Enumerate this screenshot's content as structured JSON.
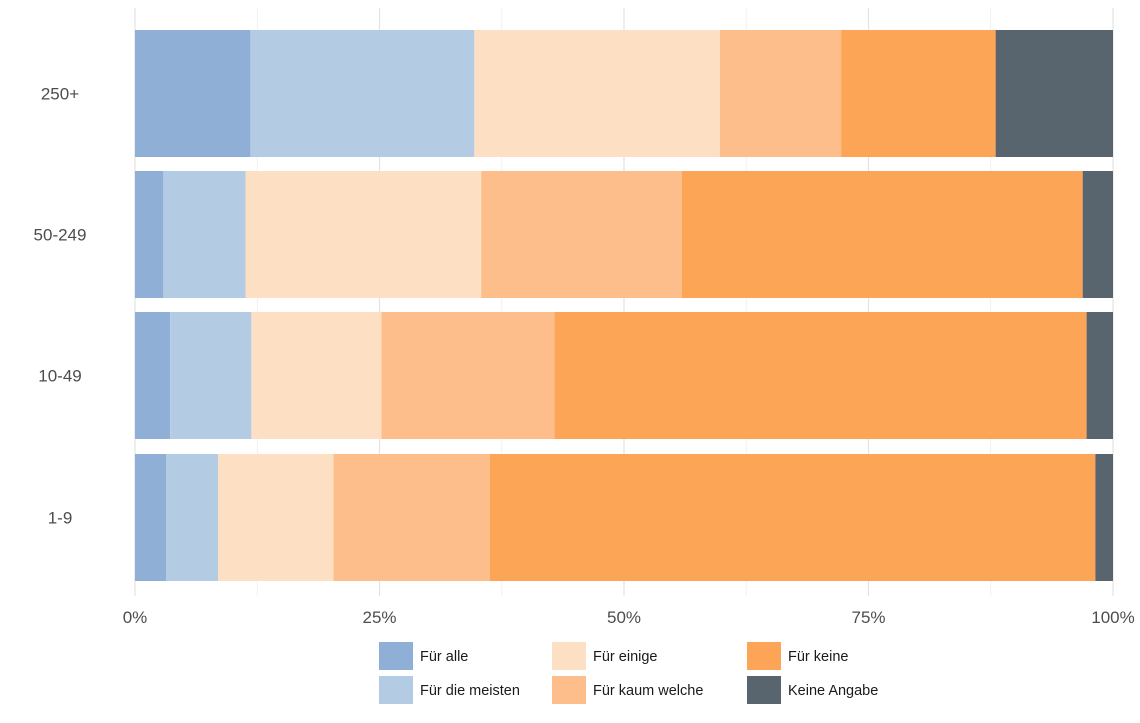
{
  "chart_data": {
    "type": "bar",
    "orientation": "horizontal",
    "stacked": true,
    "normalized": true,
    "categories": [
      "250+",
      "50-249",
      "10-49",
      "1-9"
    ],
    "xlim": [
      0,
      100
    ],
    "x_ticks": [
      "0%",
      "25%",
      "50%",
      "75%",
      "100%"
    ],
    "grid": true,
    "legend_position": "bottom",
    "series": [
      {
        "name": "Für alle",
        "color": "#8FAFD7",
        "values": [
          11.8,
          2.9,
          3.6,
          3.2
        ]
      },
      {
        "name": "Für die meisten",
        "color": "#B3CCE4",
        "values": [
          22.9,
          8.4,
          8.3,
          5.3
        ]
      },
      {
        "name": "Für einige",
        "color": "#FDDFC3",
        "values": [
          25.1,
          24.1,
          13.3,
          11.8
        ]
      },
      {
        "name": "Für kaum welche",
        "color": "#FDBE8C",
        "values": [
          12.4,
          20.5,
          17.7,
          16.0
        ]
      },
      {
        "name": "Für keine",
        "color": "#FCA556",
        "values": [
          15.8,
          41.0,
          54.4,
          61.9
        ]
      },
      {
        "name": "Keine Angabe",
        "color": "#59656E",
        "values": [
          12.0,
          3.1,
          2.7,
          1.8
        ]
      }
    ]
  }
}
